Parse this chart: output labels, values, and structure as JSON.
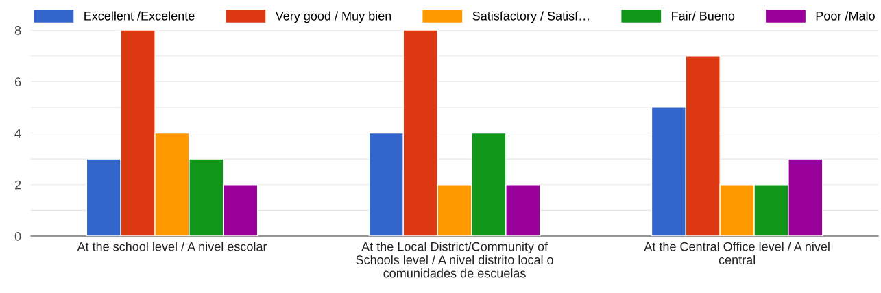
{
  "chart_data": {
    "type": "bar",
    "categories": [
      "At the school level / A nivel escolar",
      "At the Local District/Community of\nSchools level / A nivel distrito local o\ncomunidades de escuelas",
      "At the Central Office level / A nivel\ncentral"
    ],
    "series": [
      {
        "name": "Excellent /Excelente",
        "color": "#3366cc",
        "values": [
          3,
          4,
          5
        ]
      },
      {
        "name": "Very good / Muy bien",
        "color": "#dc3912",
        "values": [
          8,
          8,
          7
        ]
      },
      {
        "name": "Satisfactory / Satisf…",
        "color": "#ff9900",
        "values": [
          4,
          2,
          2
        ]
      },
      {
        "name": "Fair/ Bueno",
        "color": "#109618",
        "values": [
          3,
          4,
          2
        ]
      },
      {
        "name": "Poor /Malo",
        "color": "#990099",
        "values": [
          2,
          2,
          3
        ]
      }
    ],
    "ylim": [
      0,
      8
    ],
    "yticks": [
      0,
      {
        "value": 1,
        "label": null
      },
      2,
      {
        "value": 3,
        "label": null
      },
      4,
      {
        "value": 5,
        "label": null
      },
      6,
      {
        "value": 7,
        "label": null
      },
      8
    ],
    "grid": "y",
    "legend": "top"
  }
}
